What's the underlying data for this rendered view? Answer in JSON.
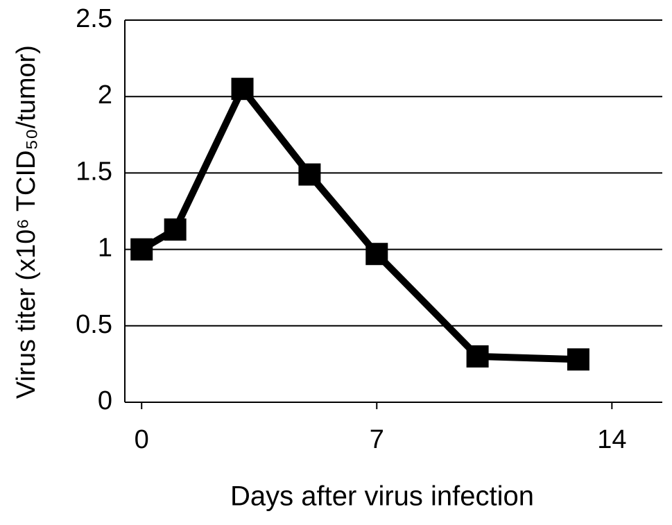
{
  "chart_data": {
    "type": "line",
    "ylabel": "Virus titer (x10⁶ TCID₅₀/tumor)",
    "xlabel": "Days after virus infection",
    "x": [
      0,
      1,
      3,
      5,
      7,
      10,
      13
    ],
    "series": [
      {
        "name": "Virus titer",
        "color": "#000000",
        "values": [
          1.0,
          1.13,
          2.05,
          1.49,
          0.97,
          0.3,
          0.28
        ]
      }
    ],
    "xlim": [
      -0.5,
      15.5
    ],
    "xticks": [
      0,
      7,
      14
    ],
    "ylim": [
      0,
      2.5
    ],
    "yticks": [
      0,
      0.5,
      1,
      1.5,
      2,
      2.5
    ],
    "grid": true
  }
}
